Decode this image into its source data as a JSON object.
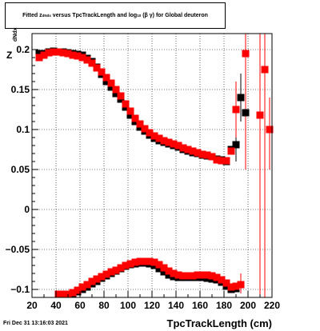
{
  "title": {
    "prefix": "Fitted",
    "z": "z",
    "z_sub": "dNdx",
    "middle": "versus TpcTrackLength and log",
    "log_sub": "10",
    "paren": "(",
    "beta": "β",
    "gamma": "γ",
    "paren_close": ")",
    "suffix": "for Global deuteron"
  },
  "ylabel": {
    "z": "Z",
    "sub": "dNdx"
  },
  "xlabel": "TpcTrackLength (cm)",
  "datestamp": "Fri Dec 31 13:16:03 2021",
  "colors": {
    "black_series": "#000000",
    "red_series": "#ff0000",
    "grid": "#000000"
  },
  "chart_data": {
    "type": "scatter",
    "xlim": [
      20,
      220
    ],
    "ylim": [
      -0.11,
      0.22
    ],
    "x_ticks": [
      20,
      40,
      60,
      80,
      100,
      120,
      140,
      160,
      180,
      200,
      220
    ],
    "x_tick_labels": [
      "20",
      "40",
      "60",
      "80",
      "100",
      "120",
      "140",
      "160",
      "180",
      "200",
      "220"
    ],
    "y_ticks": [
      -0.1,
      -0.05,
      0,
      0.05,
      0.1,
      0.15,
      0.2
    ],
    "y_tick_labels": [
      "−0.1",
      "−0.05",
      "0",
      "0.05",
      "0.1",
      "0.15",
      "0.2"
    ],
    "grid": true,
    "series": [
      {
        "color": "black",
        "marker": "square",
        "points": [
          [
            26,
            0.195
          ],
          [
            30,
            0.195
          ],
          [
            34,
            0.197
          ],
          [
            38,
            0.198
          ],
          [
            42,
            0.197
          ],
          [
            46,
            0.197
          ],
          [
            50,
            0.196
          ],
          [
            54,
            0.195
          ],
          [
            58,
            0.194
          ],
          [
            62,
            0.193
          ],
          [
            66,
            0.189
          ],
          [
            70,
            0.185
          ],
          [
            74,
            0.178
          ],
          [
            78,
            0.169
          ],
          [
            82,
            0.16
          ],
          [
            86,
            0.153
          ],
          [
            90,
            0.145
          ],
          [
            94,
            0.138
          ],
          [
            98,
            0.128
          ],
          [
            102,
            0.118
          ],
          [
            106,
            0.11
          ],
          [
            110,
            0.103
          ],
          [
            114,
            0.098
          ],
          [
            118,
            0.093
          ],
          [
            122,
            0.089
          ],
          [
            126,
            0.086
          ],
          [
            130,
            0.084
          ],
          [
            134,
            0.082
          ],
          [
            138,
            0.08
          ],
          [
            142,
            0.078
          ],
          [
            146,
            0.075
          ],
          [
            150,
            0.073
          ],
          [
            154,
            0.071
          ],
          [
            158,
            0.07
          ],
          [
            162,
            0.068
          ],
          [
            166,
            0.067
          ],
          [
            170,
            0.066
          ],
          [
            174,
            0.063
          ],
          [
            178,
            0.062
          ],
          [
            182,
            0.06
          ],
          [
            186,
            0.075
          ],
          [
            190,
            0.081
          ],
          [
            194,
            0.14
          ],
          [
            198,
            0.121
          ],
          [
            46,
            -0.106
          ],
          [
            50,
            -0.106
          ],
          [
            54,
            -0.105
          ],
          [
            58,
            -0.103
          ],
          [
            62,
            -0.1
          ],
          [
            66,
            -0.097
          ],
          [
            70,
            -0.093
          ],
          [
            74,
            -0.09
          ],
          [
            78,
            -0.086
          ],
          [
            82,
            -0.083
          ],
          [
            86,
            -0.08
          ],
          [
            90,
            -0.077
          ],
          [
            94,
            -0.074
          ],
          [
            98,
            -0.071
          ],
          [
            102,
            -0.069
          ],
          [
            106,
            -0.068
          ],
          [
            110,
            -0.067
          ],
          [
            114,
            -0.067
          ],
          [
            118,
            -0.068
          ],
          [
            122,
            -0.07
          ],
          [
            126,
            -0.074
          ],
          [
            130,
            -0.078
          ],
          [
            134,
            -0.082
          ],
          [
            138,
            -0.084
          ],
          [
            142,
            -0.085
          ],
          [
            146,
            -0.085
          ],
          [
            150,
            -0.085
          ],
          [
            154,
            -0.085
          ],
          [
            158,
            -0.085
          ],
          [
            162,
            -0.085
          ],
          [
            166,
            -0.086
          ],
          [
            170,
            -0.087
          ],
          [
            174,
            -0.088
          ],
          [
            178,
            -0.091
          ],
          [
            182,
            -0.096
          ],
          [
            186,
            -0.1
          ],
          [
            190,
            -0.099
          ]
        ]
      },
      {
        "color": "red",
        "marker": "square",
        "points": [
          [
            26,
            0.19
          ],
          [
            30,
            0.193
          ],
          [
            34,
            0.196
          ],
          [
            38,
            0.197
          ],
          [
            42,
            0.197
          ],
          [
            46,
            0.196
          ],
          [
            50,
            0.195
          ],
          [
            54,
            0.193
          ],
          [
            58,
            0.192
          ],
          [
            62,
            0.19
          ],
          [
            66,
            0.187
          ],
          [
            70,
            0.183
          ],
          [
            74,
            0.177
          ],
          [
            78,
            0.172
          ],
          [
            82,
            0.165
          ],
          [
            86,
            0.158
          ],
          [
            90,
            0.15
          ],
          [
            94,
            0.142
          ],
          [
            98,
            0.132
          ],
          [
            102,
            0.123
          ],
          [
            106,
            0.114
          ],
          [
            110,
            0.107
          ],
          [
            114,
            0.101
          ],
          [
            118,
            0.096
          ],
          [
            122,
            0.092
          ],
          [
            126,
            0.089
          ],
          [
            130,
            0.086
          ],
          [
            134,
            0.084
          ],
          [
            138,
            0.082
          ],
          [
            142,
            0.08
          ],
          [
            146,
            0.077
          ],
          [
            150,
            0.075
          ],
          [
            154,
            0.073
          ],
          [
            158,
            0.071
          ],
          [
            162,
            0.069
          ],
          [
            166,
            0.068
          ],
          [
            170,
            0.066
          ],
          [
            174,
            0.062
          ],
          [
            178,
            0.061
          ],
          [
            182,
            0.061
          ],
          [
            186,
            0.073
          ],
          [
            190,
            0.125
          ],
          [
            198,
            0.195
          ],
          [
            210,
            0.118
          ],
          [
            214,
            0.175
          ],
          [
            218,
            0.1
          ],
          [
            42,
            -0.106
          ],
          [
            46,
            -0.106
          ],
          [
            50,
            -0.106
          ],
          [
            54,
            -0.104
          ],
          [
            58,
            -0.101
          ],
          [
            62,
            -0.097
          ],
          [
            66,
            -0.094
          ],
          [
            70,
            -0.09
          ],
          [
            74,
            -0.087
          ],
          [
            78,
            -0.084
          ],
          [
            82,
            -0.081
          ],
          [
            86,
            -0.078
          ],
          [
            90,
            -0.076
          ],
          [
            94,
            -0.073
          ],
          [
            98,
            -0.07
          ],
          [
            102,
            -0.068
          ],
          [
            106,
            -0.066
          ],
          [
            110,
            -0.065
          ],
          [
            114,
            -0.065
          ],
          [
            118,
            -0.065
          ],
          [
            122,
            -0.066
          ],
          [
            126,
            -0.069
          ],
          [
            130,
            -0.073
          ],
          [
            134,
            -0.077
          ],
          [
            138,
            -0.08
          ],
          [
            142,
            -0.082
          ],
          [
            146,
            -0.083
          ],
          [
            150,
            -0.083
          ],
          [
            154,
            -0.083
          ],
          [
            158,
            -0.082
          ],
          [
            162,
            -0.082
          ],
          [
            166,
            -0.082
          ],
          [
            170,
            -0.083
          ],
          [
            174,
            -0.085
          ],
          [
            178,
            -0.088
          ],
          [
            182,
            -0.092
          ],
          [
            186,
            -0.097
          ],
          [
            190,
            -0.096
          ],
          [
            194,
            -0.094
          ]
        ]
      }
    ],
    "error_bars": [
      {
        "color": "black",
        "x": 190,
        "y_low": 0.06,
        "y_high": 0.1
      },
      {
        "color": "black",
        "x": 194,
        "y_low": 0.11,
        "y_high": 0.17
      },
      {
        "color": "black",
        "x": 198,
        "y_low": 0.09,
        "y_high": 0.2
      },
      {
        "color": "red",
        "x": 190,
        "y_low": 0.09,
        "y_high": 0.16
      },
      {
        "color": "red",
        "x": 198,
        "y_low": 0.05,
        "y_high": 0.22
      },
      {
        "color": "red",
        "x": 210,
        "y_low": -0.11,
        "y_high": 0.22
      },
      {
        "color": "red",
        "x": 214,
        "y_low": -0.11,
        "y_high": 0.22
      },
      {
        "color": "red",
        "x": 218,
        "y_low": 0.05,
        "y_high": 0.14
      },
      {
        "color": "red",
        "x": 194,
        "y_low": -0.105,
        "y_high": -0.08
      }
    ]
  }
}
